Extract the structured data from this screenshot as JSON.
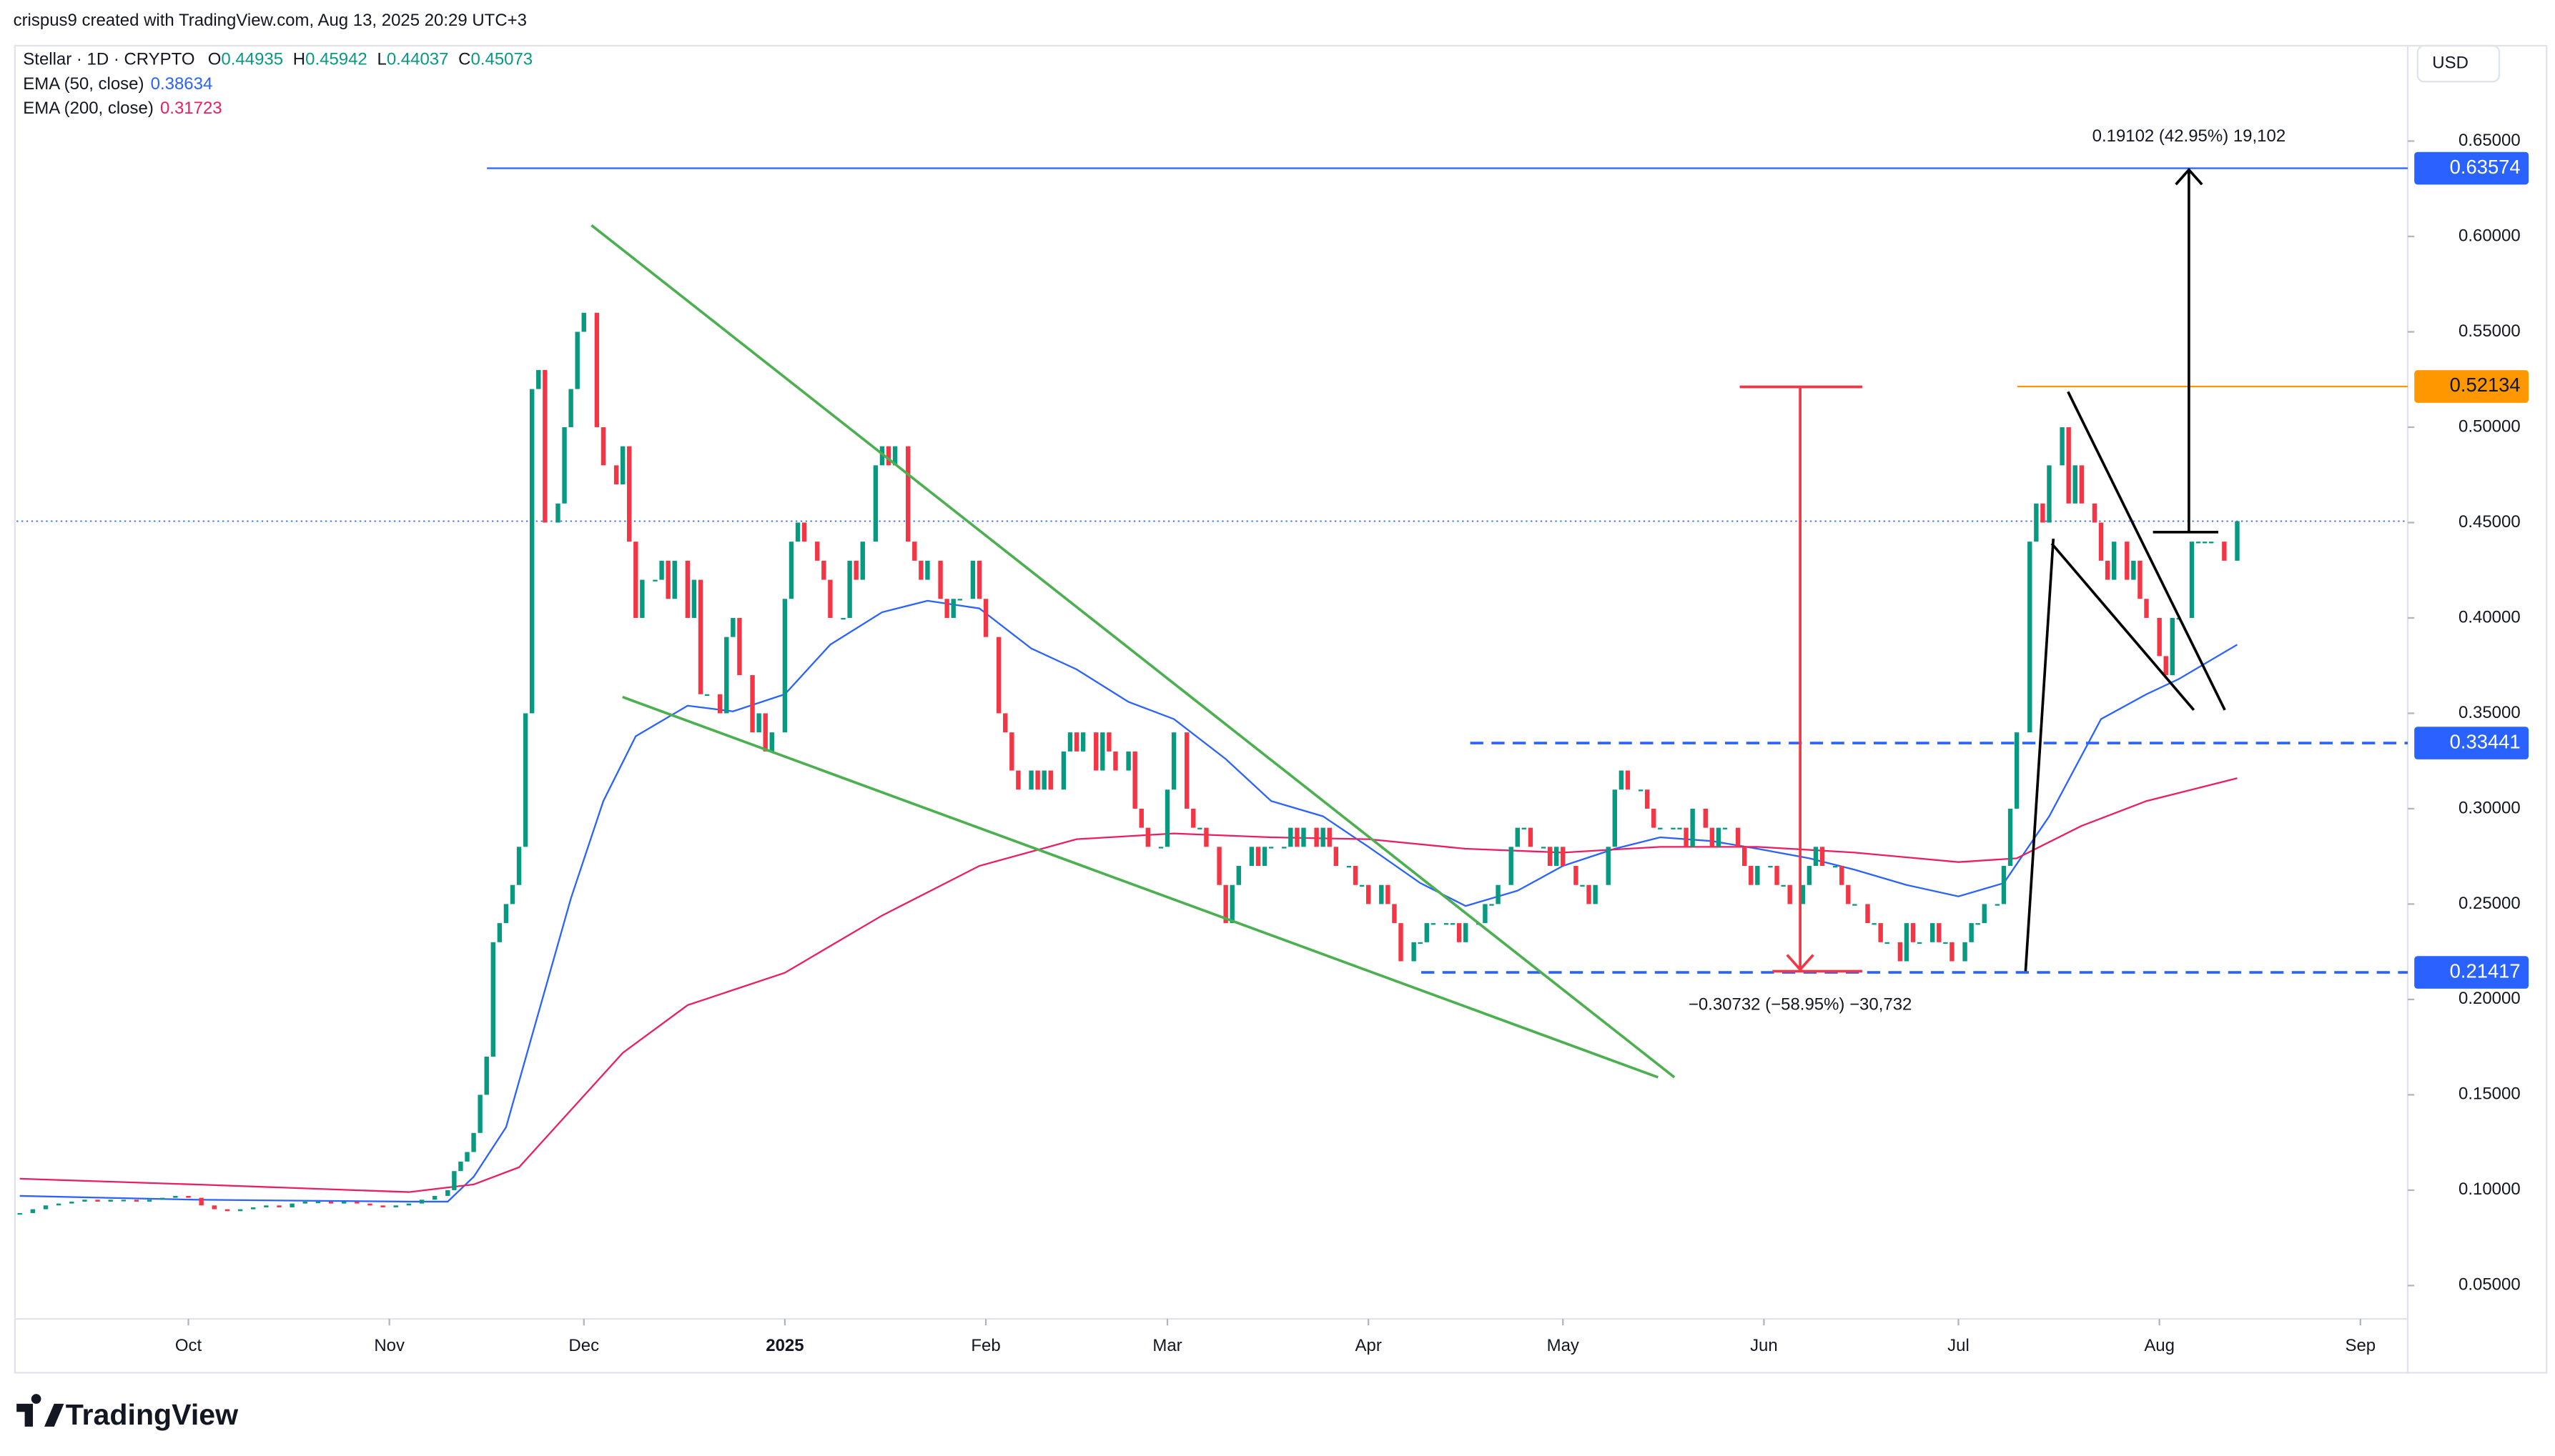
{
  "header": {
    "credit": "crispus9 created with TradingView.com, Aug 13, 2025 20:29 UTC+3",
    "currency": "USD",
    "logo": "TradingView"
  },
  "chart_data": {
    "type": "candlestick",
    "symbol": "Stellar · 1D · CRYPTO",
    "ohlc": [
      {
        "label": "O",
        "value": 0.44935
      },
      {
        "label": "H",
        "value": 0.45942
      },
      {
        "label": "L",
        "value": 0.44037
      },
      {
        "label": "C",
        "value": 0.45073
      }
    ],
    "up_color": "#089981",
    "down_color": "#f23645",
    "ylim": [
      0,
      0.7
    ],
    "yticks": [
      {
        "value": 0.05,
        "label": "0.05000"
      },
      {
        "value": 0.1,
        "label": "0.10000"
      },
      {
        "value": 0.15,
        "label": "0.15000"
      },
      {
        "value": 0.2,
        "label": "0.20000"
      },
      {
        "value": 0.25,
        "label": "0.25000"
      },
      {
        "value": 0.3,
        "label": "0.30000"
      },
      {
        "value": 0.35,
        "label": "0.35000"
      },
      {
        "value": 0.4,
        "label": "0.40000"
      },
      {
        "value": 0.45,
        "label": "0.45000"
      },
      {
        "value": 0.5,
        "label": "0.50000"
      },
      {
        "value": 0.55,
        "label": "0.55000"
      },
      {
        "value": 0.6,
        "label": "0.60000"
      },
      {
        "value": 0.65,
        "label": "0.65000"
      }
    ],
    "xlim": [
      -26.5,
      341.8
    ],
    "xticks": [
      {
        "value": 0,
        "label": "Oct"
      },
      {
        "value": 31,
        "label": "Nov"
      },
      {
        "value": 61,
        "label": "Dec"
      },
      {
        "value": 92,
        "label": "2025"
      },
      {
        "value": 123,
        "label": "Feb"
      },
      {
        "value": 151,
        "label": "Mar"
      },
      {
        "value": 182,
        "label": "Apr"
      },
      {
        "value": 212,
        "label": "May"
      },
      {
        "value": 243,
        "label": "Jun"
      },
      {
        "value": 273,
        "label": "Jul"
      },
      {
        "value": 304,
        "label": "Aug"
      },
      {
        "value": 335,
        "label": "Sep"
      }
    ],
    "x": [
      -26,
      -24,
      -22,
      -20,
      -18,
      -16,
      -14,
      -12,
      -10,
      -8,
      -6,
      -4,
      -2,
      0,
      2,
      4,
      6,
      8,
      10,
      12,
      14,
      16,
      18,
      20,
      22,
      24,
      26,
      28,
      30,
      32,
      34,
      36,
      38,
      40,
      41,
      42,
      43,
      44,
      45,
      46,
      47,
      48,
      49,
      50,
      51,
      52,
      53,
      54,
      55,
      57,
      58,
      59,
      60,
      61,
      63,
      64,
      66,
      67,
      68,
      69,
      70,
      72,
      73,
      74,
      75,
      77,
      78,
      79,
      80,
      82,
      83,
      84,
      85,
      87,
      88,
      89,
      90,
      92,
      93,
      94,
      95,
      97,
      98,
      99,
      101,
      102,
      103,
      104,
      106,
      107,
      108,
      109,
      111,
      112,
      113,
      114,
      116,
      117,
      118,
      119,
      121,
      122,
      123,
      125,
      126,
      127,
      128,
      130,
      131,
      132,
      133,
      135,
      136,
      137,
      138,
      140,
      141,
      142,
      143,
      145,
      146,
      147,
      148,
      150,
      151,
      152,
      154,
      155,
      156,
      157,
      159,
      160,
      161,
      162,
      164,
      165,
      166,
      167,
      169,
      170,
      171,
      172,
      174,
      175,
      176,
      177,
      179,
      180,
      181,
      182,
      184,
      185,
      186,
      187,
      189,
      190,
      191,
      192,
      194,
      195,
      196,
      197,
      199,
      200,
      201,
      202,
      204,
      205,
      206,
      207,
      209,
      210,
      211,
      212,
      214,
      215,
      216,
      217,
      219,
      220,
      221,
      222,
      224,
      225,
      226,
      227,
      229,
      230,
      231,
      232,
      234,
      235,
      236,
      237,
      239,
      240,
      241,
      242,
      244,
      245,
      246,
      247,
      249,
      250,
      251,
      252,
      254,
      255,
      256,
      257,
      259,
      260,
      261,
      262,
      264,
      265,
      266,
      267,
      269,
      270,
      271,
      272,
      274,
      275,
      276,
      277,
      279,
      280,
      281,
      282,
      284,
      285,
      286,
      287,
      289,
      290,
      291,
      292,
      294,
      295,
      296,
      297,
      299,
      300,
      301,
      302,
      304,
      305,
      306,
      307,
      309,
      310,
      311,
      312,
      314,
      316
    ],
    "close": [
      0.088,
      0.09,
      0.092,
      0.093,
      0.094,
      0.095,
      0.094,
      0.095,
      0.095,
      0.094,
      0.095,
      0.096,
      0.097,
      0.096,
      0.092,
      0.09,
      0.089,
      0.09,
      0.091,
      0.092,
      0.091,
      0.093,
      0.094,
      0.094,
      0.093,
      0.094,
      0.093,
      0.092,
      0.091,
      0.092,
      0.093,
      0.095,
      0.097,
      0.1,
      0.11,
      0.115,
      0.12,
      0.13,
      0.15,
      0.17,
      0.23,
      0.24,
      0.25,
      0.26,
      0.28,
      0.35,
      0.52,
      0.53,
      0.45,
      0.46,
      0.5,
      0.52,
      0.55,
      0.56,
      0.5,
      0.48,
      0.47,
      0.49,
      0.44,
      0.4,
      0.42,
      0.42,
      0.43,
      0.41,
      0.43,
      0.4,
      0.42,
      0.36,
      0.36,
      0.35,
      0.39,
      0.4,
      0.37,
      0.34,
      0.35,
      0.33,
      0.34,
      0.41,
      0.44,
      0.45,
      0.44,
      0.43,
      0.42,
      0.4,
      0.4,
      0.43,
      0.42,
      0.44,
      0.48,
      0.49,
      0.48,
      0.49,
      0.44,
      0.43,
      0.42,
      0.43,
      0.41,
      0.4,
      0.41,
      0.41,
      0.43,
      0.41,
      0.39,
      0.35,
      0.34,
      0.32,
      0.31,
      0.32,
      0.31,
      0.32,
      0.31,
      0.33,
      0.34,
      0.33,
      0.34,
      0.32,
      0.34,
      0.33,
      0.32,
      0.33,
      0.3,
      0.29,
      0.28,
      0.28,
      0.31,
      0.34,
      0.3,
      0.29,
      0.29,
      0.28,
      0.26,
      0.24,
      0.26,
      0.27,
      0.28,
      0.27,
      0.28,
      0.28,
      0.28,
      0.29,
      0.28,
      0.29,
      0.28,
      0.29,
      0.28,
      0.27,
      0.27,
      0.26,
      0.26,
      0.25,
      0.26,
      0.25,
      0.24,
      0.22,
      0.23,
      0.23,
      0.24,
      0.24,
      0.24,
      0.24,
      0.23,
      0.24,
      0.24,
      0.25,
      0.25,
      0.26,
      0.28,
      0.29,
      0.29,
      0.28,
      0.28,
      0.27,
      0.28,
      0.27,
      0.26,
      0.26,
      0.25,
      0.26,
      0.28,
      0.31,
      0.32,
      0.31,
      0.31,
      0.3,
      0.29,
      0.29,
      0.29,
      0.29,
      0.28,
      0.3,
      0.29,
      0.28,
      0.29,
      0.29,
      0.28,
      0.27,
      0.26,
      0.27,
      0.27,
      0.26,
      0.26,
      0.25,
      0.26,
      0.27,
      0.28,
      0.27,
      0.27,
      0.26,
      0.25,
      0.25,
      0.24,
      0.24,
      0.23,
      0.23,
      0.22,
      0.24,
      0.23,
      0.23,
      0.24,
      0.23,
      0.23,
      0.22,
      0.23,
      0.24,
      0.24,
      0.25,
      0.25,
      0.27,
      0.3,
      0.34,
      0.44,
      0.46,
      0.45,
      0.48,
      0.5,
      0.46,
      0.48,
      0.46,
      0.45,
      0.43,
      0.42,
      0.44,
      0.42,
      0.43,
      0.41,
      0.4,
      0.38,
      0.37,
      0.4,
      0.4,
      0.44,
      0.44,
      0.44,
      0.44,
      0.43,
      0.45073
    ],
    "lines": [
      {
        "name": "EMA (50, close)",
        "last_value": 0.38634,
        "color": "#2962ff",
        "x": [
          -26,
          1,
          34,
          40,
          44,
          49,
          54,
          59,
          64,
          69,
          77,
          84,
          92,
          99,
          107,
          114,
          122,
          130,
          137,
          145,
          152,
          160,
          167,
          175,
          182,
          190,
          197,
          205,
          212,
          220,
          227,
          235,
          242,
          250,
          257,
          265,
          273,
          280,
          287,
          295,
          302,
          307,
          316
        ],
        "values": [
          0.097,
          0.095,
          0.094,
          0.094,
          0.107,
          0.133,
          0.193,
          0.253,
          0.304,
          0.338,
          0.354,
          0.351,
          0.36,
          0.386,
          0.403,
          0.409,
          0.405,
          0.384,
          0.373,
          0.356,
          0.347,
          0.326,
          0.304,
          0.296,
          0.28,
          0.261,
          0.249,
          0.257,
          0.27,
          0.279,
          0.285,
          0.283,
          0.279,
          0.274,
          0.268,
          0.26,
          0.254,
          0.261,
          0.296,
          0.347,
          0.36,
          0.368,
          0.386
        ]
      },
      {
        "name": "EMA (200, close)",
        "last_value": 0.31723,
        "color": "#e91e63",
        "x": [
          -26,
          1,
          34,
          44,
          51,
          59,
          67,
          77,
          92,
          107,
          122,
          137,
          152,
          167,
          182,
          197,
          212,
          227,
          242,
          257,
          273,
          282,
          292,
          302,
          316
        ],
        "values": [
          0.106,
          0.103,
          0.099,
          0.103,
          0.112,
          0.142,
          0.172,
          0.197,
          0.214,
          0.244,
          0.27,
          0.284,
          0.287,
          0.285,
          0.284,
          0.279,
          0.277,
          0.28,
          0.28,
          0.277,
          0.272,
          0.274,
          0.291,
          0.304,
          0.316
        ]
      }
    ],
    "levels": [
      {
        "value": 0.63574,
        "color": "#2962ff",
        "style": "solid"
      },
      {
        "value": 0.52134,
        "color": "#ff9800",
        "style": "solid"
      },
      {
        "value": 0.33441,
        "color": "#2962ff",
        "style": "dashed"
      },
      {
        "value": 0.21417,
        "color": "#2962ff",
        "style": "dashed"
      }
    ],
    "annotations": [
      "0.19102 (42.95%) 19,102",
      "−0.30732 (−58.95%) −30,732"
    ]
  }
}
